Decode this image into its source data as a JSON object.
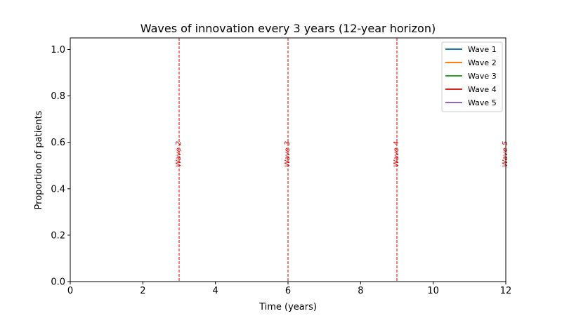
{
  "chart_data": {
    "type": "line",
    "title": "Waves of innovation every 3 years (12-year horizon)",
    "xlabel": "Time (years)",
    "ylabel": "Proportion of patients",
    "xlim": [
      0,
      12
    ],
    "ylim": [
      0,
      1.05
    ],
    "x_ticks": [
      0,
      2,
      4,
      6,
      8,
      10,
      12
    ],
    "y_ticks": [
      0.0,
      0.2,
      0.4,
      0.6,
      0.8,
      1.0
    ],
    "x_tick_labels": [
      "0",
      "2",
      "4",
      "6",
      "8",
      "10",
      "12"
    ],
    "y_tick_labels": [
      "0.0",
      "0.2",
      "0.4",
      "0.6",
      "0.8",
      "1.0"
    ],
    "grid": false,
    "legend_position": "top-right",
    "series": [
      {
        "name": "Wave 1",
        "color": "#1f77b4",
        "x": [],
        "y": []
      },
      {
        "name": "Wave 2",
        "color": "#ff7f0e",
        "x": [],
        "y": []
      },
      {
        "name": "Wave 3",
        "color": "#2ca02c",
        "x": [],
        "y": []
      },
      {
        "name": "Wave 4",
        "color": "#d62728",
        "x": [],
        "y": []
      },
      {
        "name": "Wave 5",
        "color": "#9467bd",
        "x": [],
        "y": []
      }
    ],
    "vlines": [
      {
        "x": 3,
        "label": "Wave 2",
        "color": "#e00000"
      },
      {
        "x": 6,
        "label": "Wave 3",
        "color": "#e00000"
      },
      {
        "x": 9,
        "label": "Wave 4",
        "color": "#e00000"
      },
      {
        "x": 12,
        "label": "Wave 5",
        "color": "#e00000"
      }
    ]
  }
}
